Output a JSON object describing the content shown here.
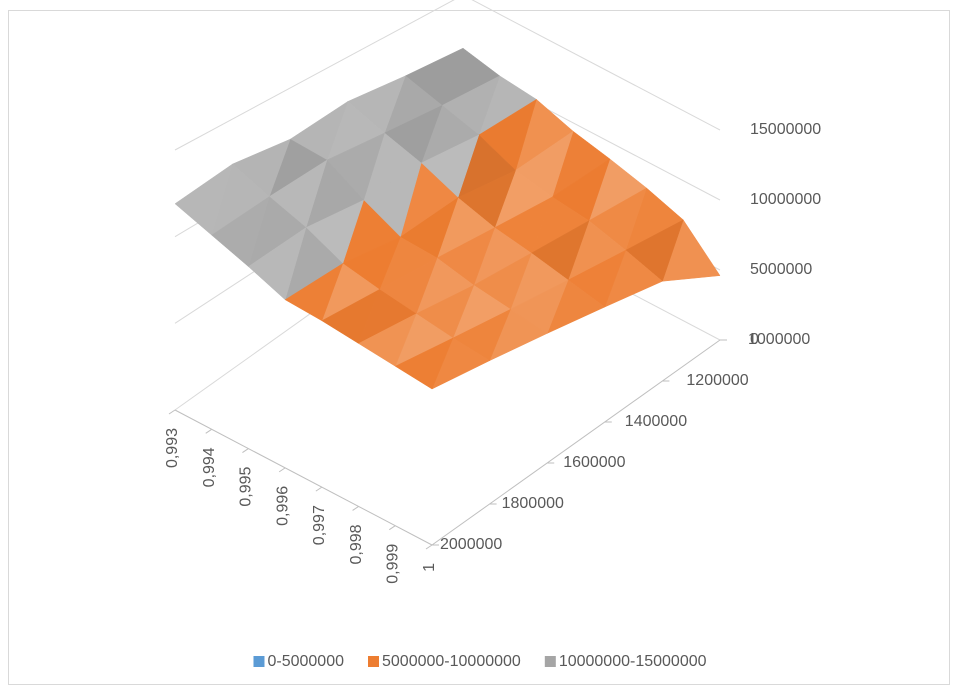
{
  "chart_data": {
    "type": "surface",
    "categories": [
      "0,993",
      "0,994",
      "0,995",
      "0,996",
      "0,997",
      "0,998",
      "0,999",
      "1"
    ],
    "depth": [
      1000000,
      1200000,
      1400000,
      1600000,
      1800000,
      2000000
    ],
    "z": [
      [
        11200000,
        10600000,
        10300000,
        9400000,
        8800000,
        8100000,
        7200000,
        4600000
      ],
      [
        11600000,
        10900000,
        10200000,
        9100000,
        8600000,
        8300000,
        7600000,
        6800000
      ],
      [
        12100000,
        11300000,
        10600000,
        9600000,
        8900000,
        8500000,
        8000000,
        7500000
      ],
      [
        11800000,
        11700000,
        10400000,
        9300000,
        9200000,
        8700000,
        8400000,
        8100000
      ],
      [
        12300000,
        11500000,
        10800000,
        9800000,
        9400000,
        9100000,
        8800000,
        8600000
      ],
      [
        11900000,
        11200000,
        10500000,
        9700000,
        9600000,
        9400000,
        9200000,
        9000000
      ]
    ],
    "zlim": [
      0,
      15000000
    ],
    "zticks": [
      0,
      5000000,
      10000000,
      15000000
    ],
    "bands": [
      {
        "name": "0-5000000",
        "color": "#5b9bd5"
      },
      {
        "name": "5000000-10000000",
        "color": "#ed7d31"
      },
      {
        "name": "10000000-15000000",
        "color": "#a5a5a5"
      }
    ],
    "grid": true
  }
}
